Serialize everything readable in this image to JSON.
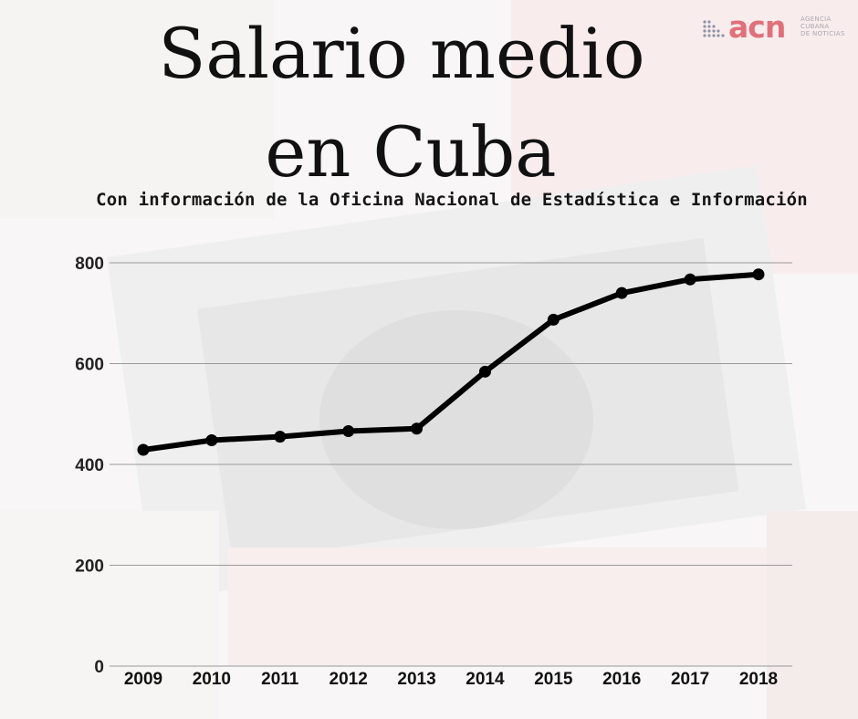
{
  "header": {
    "title_line1": "Salario medio",
    "title_line2": "en Cuba",
    "subtitle": "Con información de la Oficina Nacional de Estadística e Información"
  },
  "logo": {
    "text": "acn",
    "tagline_1": "AGENCIA",
    "tagline_2": "CUBANA",
    "tagline_3": "DE NOTICIAS",
    "color": "#e0707a"
  },
  "chart_data": {
    "type": "line",
    "x": [
      "2009",
      "2010",
      "2011",
      "2012",
      "2013",
      "2014",
      "2015",
      "2016",
      "2017",
      "2018"
    ],
    "series": [
      {
        "values": [
          429,
          448,
          455,
          466,
          471,
          584,
          687,
          740,
          767,
          777
        ]
      }
    ],
    "ylim": [
      0,
      800
    ],
    "yticks": [
      0,
      200,
      400,
      600,
      800
    ],
    "grid": true,
    "line_color": "#000000",
    "marker": "circle"
  }
}
